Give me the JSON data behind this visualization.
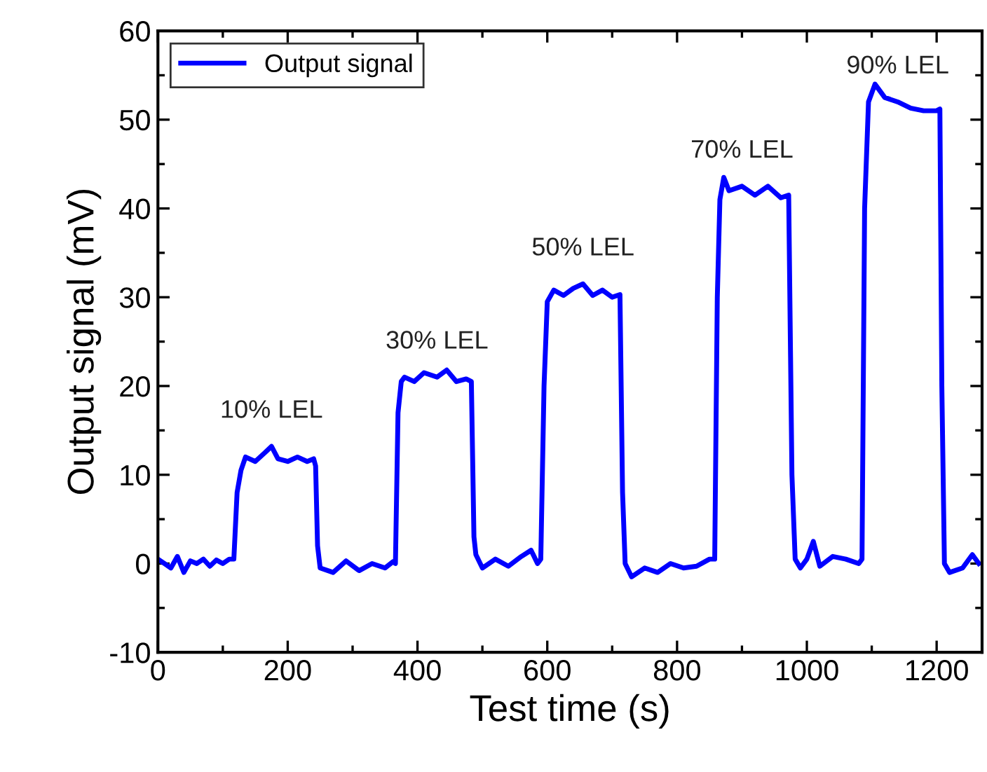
{
  "chart_data": {
    "type": "line",
    "xlabel": "Test time (s)",
    "ylabel": "Output signal (mV)",
    "xlim": [
      0,
      1270
    ],
    "xticks": [
      0,
      200,
      400,
      600,
      800,
      1000,
      1200
    ],
    "ylim": [
      -10,
      60
    ],
    "yticks": [
      -10,
      0,
      10,
      20,
      30,
      40,
      50,
      60
    ],
    "legend": "top left",
    "grid": false,
    "marker": "none",
    "line_style": "solid",
    "series": [
      {
        "name": "Output signal",
        "color": "#0000ff",
        "x": [
          0,
          10,
          20,
          30,
          40,
          50,
          60,
          70,
          80,
          90,
          100,
          110,
          117,
          122,
          128,
          135,
          150,
          165,
          175,
          185,
          200,
          215,
          230,
          240,
          243,
          246,
          250,
          270,
          290,
          310,
          330,
          350,
          362,
          366,
          370,
          375,
          380,
          395,
          410,
          430,
          445,
          460,
          475,
          483,
          487,
          490,
          500,
          520,
          540,
          560,
          575,
          585,
          590,
          595,
          600,
          610,
          625,
          640,
          655,
          670,
          685,
          700,
          712,
          716,
          720,
          730,
          750,
          770,
          790,
          810,
          830,
          850,
          858,
          862,
          866,
          872,
          880,
          900,
          920,
          940,
          960,
          972,
          977,
          982,
          990,
          1000,
          1010,
          1020,
          1040,
          1060,
          1080,
          1085,
          1089,
          1095,
          1105,
          1120,
          1140,
          1160,
          1180,
          1200,
          1205,
          1208,
          1212,
          1220,
          1240,
          1255,
          1265
        ],
        "values": [
          0.5,
          0,
          -0.5,
          0.8,
          -1,
          0.3,
          0,
          0.5,
          -0.3,
          0.4,
          0,
          0.5,
          0.5,
          8,
          10.5,
          12,
          11.5,
          12.5,
          13.2,
          11.8,
          11.5,
          12,
          11.5,
          11.8,
          11,
          2,
          -0.5,
          -1,
          0.3,
          -0.8,
          0,
          -0.5,
          0.2,
          0,
          17,
          20.5,
          21,
          20.5,
          21.5,
          21,
          21.8,
          20.5,
          20.8,
          20.5,
          3,
          1,
          -0.5,
          0.5,
          -0.3,
          0.8,
          1.5,
          0,
          0.5,
          20,
          29.5,
          30.8,
          30.2,
          31,
          31.5,
          30.2,
          30.8,
          30,
          30.3,
          8,
          0,
          -1.5,
          -0.5,
          -1,
          0,
          -0.5,
          -0.3,
          0.5,
          0.5,
          30,
          41,
          43.5,
          42,
          42.5,
          41.5,
          42.5,
          41.2,
          41.5,
          10,
          0.5,
          -0.5,
          0.5,
          2.5,
          -0.3,
          0.8,
          0.5,
          0,
          0.5,
          40,
          52,
          54,
          52.5,
          52,
          51.3,
          51,
          51,
          51.2,
          20,
          0,
          -1,
          -0.5,
          1,
          0
        ]
      }
    ],
    "annotations": [
      {
        "text": "10% LEL",
        "x": 175,
        "y": 13.2
      },
      {
        "text": "30% LEL",
        "x": 430,
        "y": 21
      },
      {
        "text": "50% LEL",
        "x": 655,
        "y": 31.5
      },
      {
        "text": "70% LEL",
        "x": 900,
        "y": 42.5
      },
      {
        "text": "90% LEL",
        "x": 1140,
        "y": 52
      }
    ]
  }
}
